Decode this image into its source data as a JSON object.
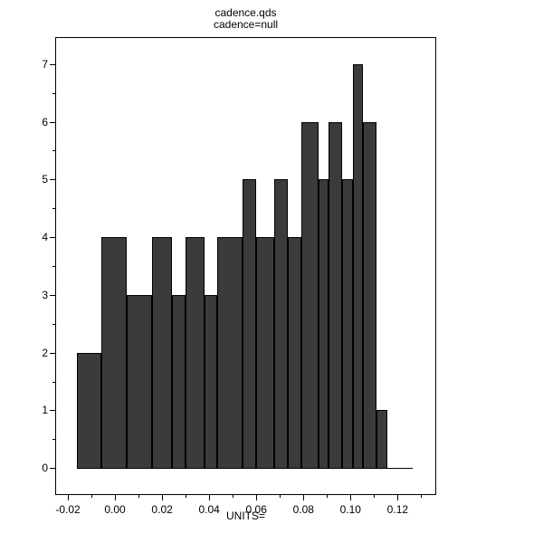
{
  "chart_data": {
    "type": "bar",
    "chart_kind": "histogram",
    "title": "cadence.qds",
    "subtitle": "cadence=null",
    "xlabel": "UNITS=",
    "ylabel": "",
    "x_axis": {
      "min": -0.025,
      "max": 0.136,
      "major_ticks": [
        {
          "v": -0.02,
          "label": "-0.02"
        },
        {
          "v": 0.0,
          "label": "0.00"
        },
        {
          "v": 0.02,
          "label": "0.02"
        },
        {
          "v": 0.04,
          "label": "0.04"
        },
        {
          "v": 0.06,
          "label": "0.06"
        },
        {
          "v": 0.08,
          "label": "0.08"
        },
        {
          "v": 0.1,
          "label": "0.10"
        },
        {
          "v": 0.12,
          "label": "0.12"
        }
      ],
      "minor_ticks": [
        -0.01,
        0.01,
        0.03,
        0.05,
        0.07,
        0.09,
        0.11,
        0.13
      ]
    },
    "y_axis": {
      "min": -0.45,
      "max": 7.45,
      "major_ticks": [
        {
          "v": 0,
          "label": "0"
        },
        {
          "v": 1,
          "label": "1"
        },
        {
          "v": 2,
          "label": "2"
        },
        {
          "v": 3,
          "label": "3"
        },
        {
          "v": 4,
          "label": "4"
        },
        {
          "v": 5,
          "label": "5"
        },
        {
          "v": 6,
          "label": "6"
        },
        {
          "v": 7,
          "label": "7"
        }
      ],
      "minor_ticks": [
        0.5,
        1.5,
        2.5,
        3.5,
        4.5,
        5.5,
        6.5
      ]
    },
    "bars": [
      {
        "x0": -0.0162,
        "x1": -0.0058,
        "count": 2
      },
      {
        "x0": -0.0058,
        "x1": 0.005,
        "count": 4
      },
      {
        "x0": 0.005,
        "x1": 0.0158,
        "count": 3
      },
      {
        "x0": 0.0158,
        "x1": 0.0242,
        "count": 4
      },
      {
        "x0": 0.0242,
        "x1": 0.03,
        "count": 3
      },
      {
        "x0": 0.03,
        "x1": 0.0381,
        "count": 4
      },
      {
        "x0": 0.0381,
        "x1": 0.0435,
        "count": 3
      },
      {
        "x0": 0.0435,
        "x1": 0.0542,
        "count": 4
      },
      {
        "x0": 0.0542,
        "x1": 0.06,
        "count": 5
      },
      {
        "x0": 0.06,
        "x1": 0.0677,
        "count": 4
      },
      {
        "x0": 0.0677,
        "x1": 0.0735,
        "count": 5
      },
      {
        "x0": 0.0735,
        "x1": 0.0792,
        "count": 4
      },
      {
        "x0": 0.0792,
        "x1": 0.0865,
        "count": 6
      },
      {
        "x0": 0.0865,
        "x1": 0.0908,
        "count": 5
      },
      {
        "x0": 0.0908,
        "x1": 0.0965,
        "count": 6
      },
      {
        "x0": 0.0965,
        "x1": 0.1012,
        "count": 5
      },
      {
        "x0": 0.1012,
        "x1": 0.1054,
        "count": 7
      },
      {
        "x0": 0.1054,
        "x1": 0.1112,
        "count": 6
      },
      {
        "x0": 0.1112,
        "x1": 0.1158,
        "count": 1
      },
      {
        "x0": 0.1158,
        "x1": 0.1265,
        "count": 0
      }
    ],
    "colors": {
      "bar_fill": "#3b3b3b",
      "bar_edge": "#000000",
      "axis": "#000000",
      "background": "#ffffff"
    }
  }
}
